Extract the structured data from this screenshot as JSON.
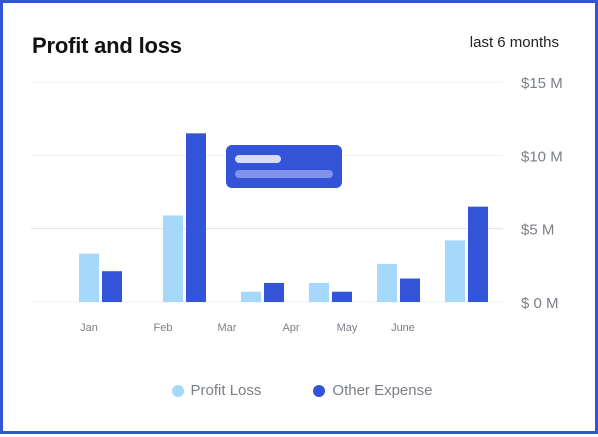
{
  "header": {
    "title": "Profit and loss",
    "period": "last 6 months"
  },
  "colors": {
    "series_light": "#a6d8fb",
    "series_dark": "#3354d9",
    "tooltip_bg": "#3354d9",
    "border": "#3354d9"
  },
  "chart_data": {
    "type": "bar",
    "categories": [
      "Jan",
      "Feb",
      "Mar",
      "Apr",
      "May",
      "June"
    ],
    "series": [
      {
        "name": "Profit Loss",
        "color": "#a6d8fb",
        "values": [
          3.3,
          5.9,
          0.7,
          1.3,
          2.6,
          4.2
        ]
      },
      {
        "name": "Other Expense",
        "color": "#3354d9",
        "values": [
          2.1,
          11.5,
          1.3,
          0.7,
          1.6,
          6.5
        ]
      }
    ],
    "y_ticks": [
      "$ 0 M",
      "$5 M",
      "$10 M",
      "$15 M"
    ],
    "ylim": [
      0,
      15
    ],
    "grid": true,
    "legend_position": "bottom",
    "axis_side": "right"
  }
}
